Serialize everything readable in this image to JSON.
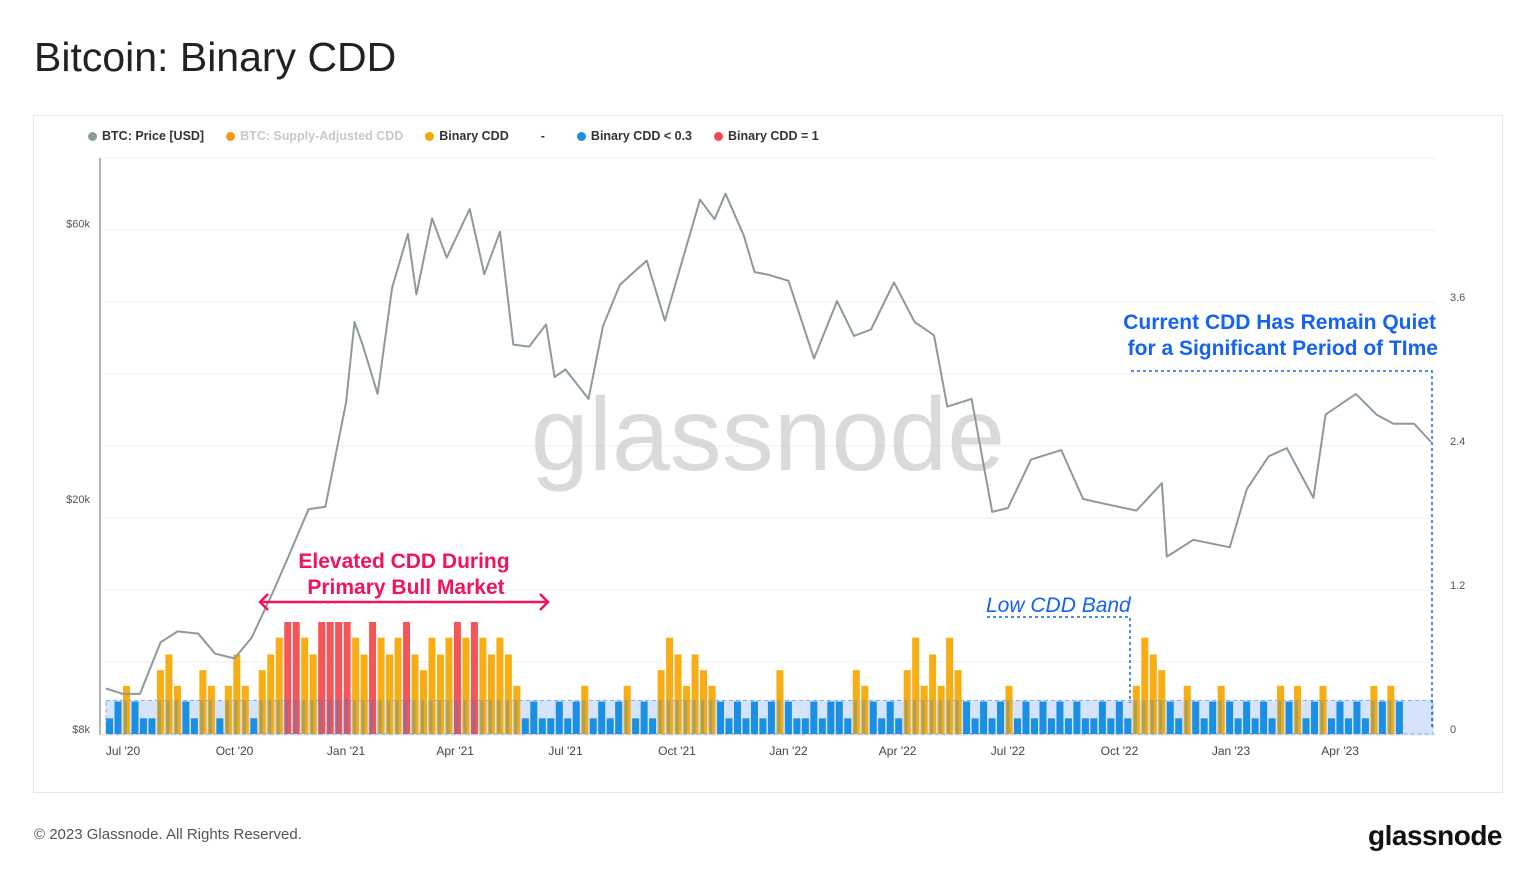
{
  "title": "Bitcoin: Binary CDD",
  "legend": [
    {
      "label": "BTC: Price [USD]",
      "color": "#8e9a9a"
    },
    {
      "label": "BTC: Supply-Adjusted CDD",
      "color": "#f7931a",
      "muted": true
    },
    {
      "label": "Binary CDD",
      "color": "#f7a600"
    },
    {
      "label": "-",
      "color": ""
    },
    {
      "label": "Binary CDD < 0.3",
      "color": "#1a8fe3"
    },
    {
      "label": "Binary CDD = 1",
      "color": "#f4474a"
    }
  ],
  "watermark": "glassnode",
  "footer": "© 2023 Glassnode. All Rights Reserved.",
  "logo": "glassnode",
  "chart_data": {
    "type": "bar+line",
    "x_ticks": [
      {
        "label": "Jul '20",
        "date": "2020-07-01"
      },
      {
        "label": "Oct '20",
        "date": "2020-10-01"
      },
      {
        "label": "Jan '21",
        "date": "2021-01-01"
      },
      {
        "label": "Apr '21",
        "date": "2021-04-01"
      },
      {
        "label": "Jul '21",
        "date": "2021-07-01"
      },
      {
        "label": "Oct '21",
        "date": "2021-10-01"
      },
      {
        "label": "Jan '22",
        "date": "2022-01-01"
      },
      {
        "label": "Apr '22",
        "date": "2022-04-01"
      },
      {
        "label": "Jul '22",
        "date": "2022-07-01"
      },
      {
        "label": "Oct '22",
        "date": "2022-10-01"
      },
      {
        "label": "Jan '23",
        "date": "2023-01-01"
      },
      {
        "label": "Apr '23",
        "date": "2023-04-01"
      }
    ],
    "left_axis": {
      "scale": "log",
      "ticks": [
        {
          "label": "$60k",
          "value": 60000
        },
        {
          "label": "$20k",
          "value": 20000
        },
        {
          "label": "$8k",
          "value": 8000
        }
      ]
    },
    "right_axis": {
      "scale": "linear",
      "ticks": [
        {
          "label": "3.6",
          "value": 3.6
        },
        {
          "label": "2.4",
          "value": 2.4
        },
        {
          "label": "1.2",
          "value": 1.2
        },
        {
          "label": "0",
          "value": 0
        }
      ]
    },
    "grid": true,
    "legend_position": "top-left",
    "low_band_threshold": 0.3,
    "price": [
      [
        "2020-06-17",
        9400
      ],
      [
        "2020-07-01",
        9200
      ],
      [
        "2020-07-15",
        9200
      ],
      [
        "2020-08-01",
        11300
      ],
      [
        "2020-08-15",
        11800
      ],
      [
        "2020-09-01",
        11700
      ],
      [
        "2020-09-15",
        10800
      ],
      [
        "2020-10-01",
        10600
      ],
      [
        "2020-10-15",
        11500
      ],
      [
        "2020-11-01",
        13700
      ],
      [
        "2020-11-15",
        16000
      ],
      [
        "2020-12-01",
        19200
      ],
      [
        "2020-12-15",
        19400
      ],
      [
        "2021-01-01",
        29400
      ],
      [
        "2021-01-08",
        40500
      ],
      [
        "2021-01-15",
        36800
      ],
      [
        "2021-01-27",
        30400
      ],
      [
        "2021-02-08",
        46400
      ],
      [
        "2021-02-21",
        57500
      ],
      [
        "2021-02-28",
        45200
      ],
      [
        "2021-03-13",
        61200
      ],
      [
        "2021-03-25",
        52300
      ],
      [
        "2021-04-13",
        63500
      ],
      [
        "2021-04-25",
        49000
      ],
      [
        "2021-05-08",
        58000
      ],
      [
        "2021-05-19",
        37000
      ],
      [
        "2021-06-01",
        36700
      ],
      [
        "2021-06-15",
        40100
      ],
      [
        "2021-06-22",
        32500
      ],
      [
        "2021-07-01",
        33500
      ],
      [
        "2021-07-20",
        29800
      ],
      [
        "2021-08-01",
        39900
      ],
      [
        "2021-08-15",
        47000
      ],
      [
        "2021-09-06",
        51700
      ],
      [
        "2021-09-21",
        40700
      ],
      [
        "2021-10-01",
        48100
      ],
      [
        "2021-10-20",
        65900
      ],
      [
        "2021-11-01",
        61000
      ],
      [
        "2021-11-10",
        67500
      ],
      [
        "2021-11-25",
        57200
      ],
      [
        "2021-12-04",
        49400
      ],
      [
        "2021-12-15",
        48900
      ],
      [
        "2022-01-01",
        47700
      ],
      [
        "2022-01-22",
        35000
      ],
      [
        "2022-02-10",
        44000
      ],
      [
        "2022-02-24",
        38300
      ],
      [
        "2022-03-10",
        39300
      ],
      [
        "2022-03-29",
        47400
      ],
      [
        "2022-04-15",
        40500
      ],
      [
        "2022-05-01",
        38400
      ],
      [
        "2022-05-12",
        28900
      ],
      [
        "2022-06-01",
        29800
      ],
      [
        "2022-06-18",
        19000
      ],
      [
        "2022-07-01",
        19300
      ],
      [
        "2022-07-20",
        23400
      ],
      [
        "2022-08-14",
        24300
      ],
      [
        "2022-09-01",
        20000
      ],
      [
        "2022-09-15",
        19700
      ],
      [
        "2022-10-15",
        19100
      ],
      [
        "2022-11-05",
        21300
      ],
      [
        "2022-11-09",
        15900
      ],
      [
        "2022-12-01",
        17000
      ],
      [
        "2022-12-31",
        16500
      ],
      [
        "2023-01-14",
        20800
      ],
      [
        "2023-02-01",
        23700
      ],
      [
        "2023-02-16",
        24500
      ],
      [
        "2023-03-10",
        20100
      ],
      [
        "2023-03-20",
        28000
      ],
      [
        "2023-04-14",
        30400
      ],
      [
        "2023-05-01",
        28000
      ],
      [
        "2023-05-15",
        27000
      ],
      [
        "2023-06-01",
        27000
      ],
      [
        "2023-06-15",
        25100
      ]
    ],
    "binary_cdd_weekly_start": "2020-06-17",
    "binary_cdd_weekly": [
      0.14,
      0.29,
      0.43,
      0.29,
      0.14,
      0.14,
      0.57,
      0.71,
      0.43,
      0.29,
      0.14,
      0.57,
      0.43,
      0.14,
      0.43,
      0.71,
      0.43,
      0.14,
      0.57,
      0.71,
      0.86,
      1,
      1,
      0.86,
      0.71,
      1,
      1,
      1,
      1,
      0.86,
      0.71,
      1,
      0.86,
      0.71,
      0.86,
      1,
      0.71,
      0.57,
      0.86,
      0.71,
      0.86,
      1,
      0.86,
      1,
      0.86,
      0.71,
      0.86,
      0.71,
      0.43,
      0.14,
      0.29,
      0.14,
      0.14,
      0.29,
      0.14,
      0.29,
      0.43,
      0.14,
      0.29,
      0.14,
      0.29,
      0.43,
      0.14,
      0.29,
      0.14,
      0.57,
      0.86,
      0.71,
      0.43,
      0.71,
      0.57,
      0.43,
      0.29,
      0.14,
      0.29,
      0.14,
      0.29,
      0.14,
      0.29,
      0.57,
      0.29,
      0.14,
      0.14,
      0.29,
      0.14,
      0.29,
      0.29,
      0.14,
      0.57,
      0.43,
      0.29,
      0.14,
      0.29,
      0.14,
      0.57,
      0.86,
      0.43,
      0.71,
      0.43,
      0.86,
      0.57,
      0.29,
      0.14,
      0.29,
      0.14,
      0.29,
      0.43,
      0.14,
      0.29,
      0.14,
      0.29,
      0.14,
      0.29,
      0.14,
      0.29,
      0.14,
      0.14,
      0.29,
      0.14,
      0.29,
      0.14,
      0.43,
      0.86,
      0.71,
      0.57,
      0.29,
      0.14,
      0.43,
      0.29,
      0.14,
      0.29,
      0.43,
      0.29,
      0.14,
      0.29,
      0.14,
      0.29,
      0.14,
      0.43,
      0.29,
      0.43,
      0.14,
      0.29,
      0.43,
      0.14,
      0.29,
      0.14,
      0.29,
      0.14,
      0.43,
      0.29,
      0.43,
      0.29
    ],
    "colors": {
      "price": "#8e9a9a",
      "low": "#1a8fe3",
      "mid": "#f7a600",
      "high": "#f4474a",
      "band": "#d6e4fb",
      "pink": "#f0145a",
      "blue": "#1463f3"
    },
    "annotations": {
      "bull": [
        "Elevated CDD During",
        "Primary Bull Market"
      ],
      "quiet": [
        "Current CDD Has Remain Quiet",
        "for a Significant Period of TIme"
      ],
      "band": "Low CDD Band"
    }
  }
}
